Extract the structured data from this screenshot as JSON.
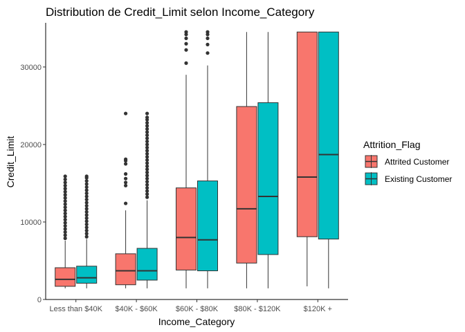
{
  "chart_data": {
    "type": "box",
    "title": "Distribution de Credit_Limit selon Income_Category",
    "xlabel": "Income_Category",
    "ylabel": "Credit_Limit",
    "categories": [
      "Less than $40K",
      "$40K - $60K",
      "$60K - $80K",
      "$80K - $120K",
      "$120K +"
    ],
    "ylim": [
      0,
      35700
    ],
    "yticks": [
      0,
      10000,
      20000,
      30000
    ],
    "legend": {
      "title": "Attrition_Flag",
      "position": "right",
      "entries": [
        {
          "label": "Attrited Customer",
          "color": "#F8766D"
        },
        {
          "label": "Existing Customer",
          "color": "#00BFC4"
        }
      ]
    },
    "series": [
      {
        "name": "Attrited Customer",
        "color": "#F8766D",
        "boxes": [
          {
            "min": 1438,
            "q1": 1700,
            "median": 2600,
            "q3": 4100,
            "max": 7600,
            "outliers": [
              7900,
              8300,
              8700,
              9100,
              9500,
              9900,
              10300,
              10700,
              11100,
              11500,
              11900,
              12300,
              12700,
              13100,
              13500,
              13900,
              14300,
              14700,
              15100,
              15500,
              15900
            ]
          },
          {
            "min": 1438,
            "q1": 1900,
            "median": 3700,
            "q3": 5900,
            "max": 11500,
            "outliers": [
              12400,
              14700,
              15100,
              15600,
              16200,
              17500,
              17900,
              18100,
              24000
            ]
          },
          {
            "min": 1438,
            "q1": 3800,
            "median": 8000,
            "q3": 14400,
            "max": 29000,
            "outliers": [
              30500,
              32200,
              33000,
              33700,
              34200,
              34516
            ]
          },
          {
            "min": 1438,
            "q1": 4700,
            "median": 11700,
            "q3": 24900,
            "max": 34516,
            "outliers": []
          },
          {
            "min": 1700,
            "q1": 8100,
            "median": 15800,
            "q3": 34516,
            "max": 34516,
            "outliers": []
          }
        ]
      },
      {
        "name": "Existing Customer",
        "color": "#00BFC4",
        "boxes": [
          {
            "min": 1438,
            "q1": 2100,
            "median": 2800,
            "q3": 4300,
            "max": 7800,
            "outliers": [
              8100,
              8500,
              8900,
              9300,
              9700,
              10100,
              10500,
              10900,
              11300,
              11700,
              12100,
              12500,
              12900,
              13300,
              13700,
              14100,
              14500,
              14900,
              15300,
              15700,
              15900
            ]
          },
          {
            "min": 1438,
            "q1": 2500,
            "median": 3700,
            "q3": 6600,
            "max": 12800,
            "outliers": [
              13200,
              13600,
              14000,
              14400,
              14800,
              15200,
              15600,
              16000,
              16400,
              16800,
              17200,
              17600,
              18000,
              18400,
              18800,
              19200,
              19600,
              20000,
              20400,
              20800,
              21200,
              21600,
              22000,
              22400,
              22800,
              23200,
              23500,
              24000
            ]
          },
          {
            "min": 1438,
            "q1": 3700,
            "median": 7700,
            "q3": 15300,
            "max": 30200,
            "outliers": [
              31800,
              32900,
              33700,
              34200,
              34516
            ]
          },
          {
            "min": 1438,
            "q1": 5800,
            "median": 13300,
            "q3": 25400,
            "max": 34516,
            "outliers": []
          },
          {
            "min": 1438,
            "q1": 7800,
            "median": 18700,
            "q3": 34516,
            "max": 34516,
            "outliers": []
          }
        ]
      }
    ]
  }
}
